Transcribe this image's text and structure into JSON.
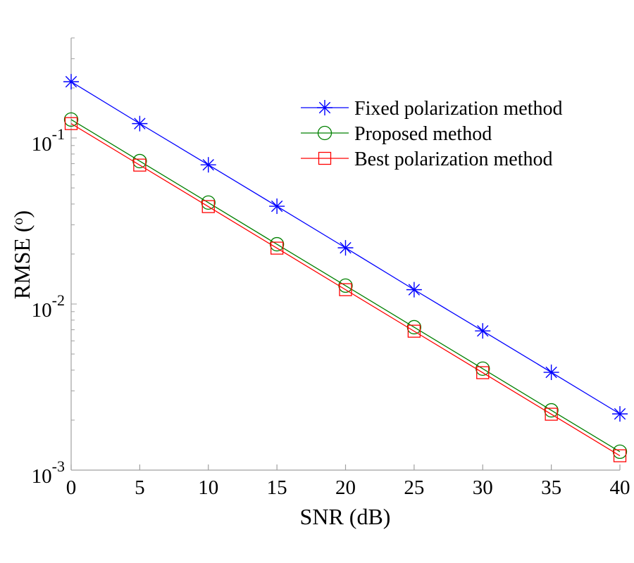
{
  "chart_data": {
    "type": "line",
    "title": "",
    "xlabel": "SNR (dB)",
    "ylabel": "RMSE (",
    "ylabel_sup": "o",
    "ylabel_close": ")",
    "yscale": "log",
    "xlim": [
      0,
      40
    ],
    "ylim": [
      0.001,
      0.4
    ],
    "grid": false,
    "legend_position": "top-right",
    "x": [
      0,
      5,
      10,
      15,
      20,
      25,
      30,
      35,
      40
    ],
    "x_ticks": [
      "0",
      "5",
      "10",
      "15",
      "20",
      "25",
      "30",
      "35",
      "40"
    ],
    "y_ticks": [
      {
        "value": 0.1,
        "base": "10",
        "exp": "-1"
      },
      {
        "value": 0.01,
        "base": "10",
        "exp": "-2"
      },
      {
        "value": 0.001,
        "base": "10",
        "exp": "-3"
      }
    ],
    "series": [
      {
        "name": "Fixed polarization method",
        "color": "#0000ff",
        "marker": "asterisk",
        "values": [
          0.218,
          0.122,
          0.0689,
          0.0388,
          0.0218,
          0.0122,
          0.00689,
          0.00388,
          0.00218
        ]
      },
      {
        "name": "Proposed method",
        "color": "#008000",
        "marker": "circle",
        "values": [
          0.129,
          0.0725,
          0.0408,
          0.0229,
          0.0129,
          0.00725,
          0.00408,
          0.00229,
          0.00129
        ]
      },
      {
        "name": "Best polarization method",
        "color": "#ff0000",
        "marker": "square",
        "values": [
          0.122,
          0.0686,
          0.0386,
          0.0217,
          0.0122,
          0.00686,
          0.00386,
          0.00217,
          0.00122
        ]
      }
    ]
  }
}
